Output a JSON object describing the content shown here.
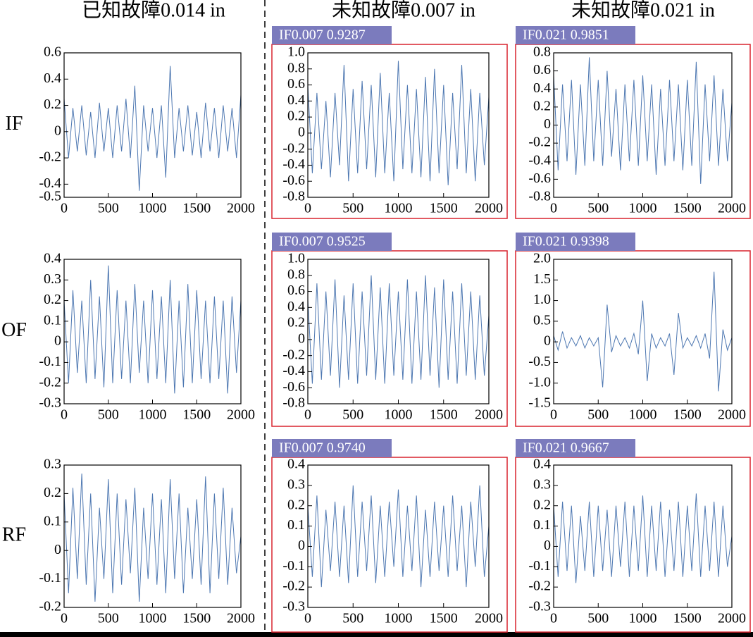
{
  "columns": [
    "已知故障0.014 in",
    "未知故障0.007 in",
    "未知故障0.021 in"
  ],
  "rows": [
    "IF",
    "OF",
    "RF"
  ],
  "chart_data": [
    {
      "type": "line",
      "color": "#2e5fa3",
      "xlim": [
        0,
        2000
      ],
      "xticks": [
        0,
        500,
        1000,
        1500,
        2000
      ],
      "ylim": [
        -0.5,
        0.6
      ],
      "yticks": [
        -0.5,
        -0.4,
        -0.2,
        0,
        0.2,
        0.4,
        0.6
      ],
      "x": [
        0,
        50,
        100,
        150,
        200,
        250,
        300,
        350,
        400,
        450,
        500,
        550,
        600,
        650,
        700,
        750,
        800,
        850,
        900,
        950,
        1000,
        1050,
        1100,
        1150,
        1200,
        1250,
        1300,
        1350,
        1400,
        1450,
        1500,
        1550,
        1600,
        1650,
        1700,
        1750,
        1800,
        1850,
        1900,
        1950,
        2000
      ],
      "values": [
        0.25,
        -0.2,
        0.18,
        -0.15,
        0.2,
        -0.18,
        0.15,
        -0.2,
        0.22,
        -0.15,
        0.18,
        -0.2,
        0.2,
        -0.15,
        0.25,
        -0.2,
        0.35,
        -0.45,
        0.2,
        -0.15,
        0.18,
        -0.2,
        0.2,
        -0.35,
        0.5,
        -0.2,
        0.18,
        -0.15,
        0.2,
        -0.18,
        0.15,
        -0.2,
        0.22,
        -0.15,
        0.18,
        -0.2,
        0.2,
        -0.15,
        0.18,
        -0.2,
        0.28
      ]
    },
    {
      "type": "line",
      "color": "#2e5fa3",
      "label": "IF0.007 0.9287",
      "xlim": [
        0,
        2000
      ],
      "xticks": [
        0,
        500,
        1000,
        1500,
        2000
      ],
      "ylim": [
        -0.8,
        1.0
      ],
      "yticks": [
        -0.8,
        -0.6,
        -0.4,
        -0.2,
        0,
        0.2,
        0.4,
        0.6,
        0.8,
        {
          "value": 1.0,
          "label": "1.0"
        }
      ],
      "x": [
        0,
        50,
        100,
        150,
        200,
        250,
        300,
        350,
        400,
        450,
        500,
        550,
        600,
        650,
        700,
        750,
        800,
        850,
        900,
        950,
        1000,
        1050,
        1100,
        1150,
        1200,
        1250,
        1300,
        1350,
        1400,
        1450,
        1500,
        1550,
        1600,
        1650,
        1700,
        1750,
        1800,
        1850,
        1900,
        1950,
        2000
      ],
      "values": [
        0.6,
        -0.5,
        0.5,
        -0.45,
        0.4,
        -0.55,
        0.5,
        -0.4,
        0.85,
        -0.6,
        0.55,
        -0.5,
        0.65,
        -0.45,
        0.6,
        -0.55,
        0.75,
        -0.5,
        0.5,
        -0.6,
        0.9,
        -0.45,
        0.6,
        -0.5,
        0.55,
        -0.55,
        0.7,
        -0.6,
        0.8,
        -0.5,
        0.6,
        -0.65,
        0.5,
        -0.45,
        0.85,
        -0.5,
        0.55,
        -0.6,
        0.5,
        -0.4,
        0.45
      ]
    },
    {
      "type": "line",
      "color": "#2e5fa3",
      "label": "IF0.021 0.9851",
      "xlim": [
        0,
        2000
      ],
      "xticks": [
        0,
        500,
        1000,
        1500,
        2000
      ],
      "ylim": [
        -0.8,
        0.8
      ],
      "yticks": [
        -0.8,
        -0.6,
        -0.4,
        -0.2,
        0,
        0.2,
        0.4,
        0.6,
        0.8
      ],
      "x": [
        0,
        50,
        100,
        150,
        200,
        250,
        300,
        350,
        400,
        450,
        500,
        550,
        600,
        650,
        700,
        750,
        800,
        850,
        900,
        950,
        1000,
        1050,
        1100,
        1150,
        1200,
        1250,
        1300,
        1350,
        1400,
        1450,
        1500,
        1550,
        1600,
        1650,
        1700,
        1750,
        1800,
        1850,
        1900,
        1950,
        2000
      ],
      "values": [
        0.55,
        -0.5,
        0.45,
        -0.4,
        0.5,
        -0.55,
        0.45,
        -0.45,
        0.75,
        -0.4,
        0.5,
        -0.45,
        0.6,
        -0.35,
        0.4,
        -0.5,
        0.45,
        -0.4,
        0.5,
        -0.45,
        0.55,
        -0.4,
        0.45,
        -0.55,
        0.4,
        -0.45,
        0.5,
        -0.4,
        0.45,
        -0.5,
        0.5,
        -0.45,
        0.7,
        -0.65,
        0.45,
        -0.4,
        0.55,
        -0.45,
        0.4,
        -0.4,
        0.25
      ]
    },
    {
      "type": "line",
      "color": "#2e5fa3",
      "xlim": [
        0,
        2000
      ],
      "xticks": [
        0,
        500,
        1000,
        1500,
        2000
      ],
      "ylim": [
        -0.3,
        0.4
      ],
      "yticks": [
        -0.3,
        -0.2,
        -0.1,
        0,
        0.1,
        0.2,
        0.3,
        0.4
      ],
      "x": [
        0,
        50,
        100,
        150,
        200,
        250,
        300,
        350,
        400,
        450,
        500,
        550,
        600,
        650,
        700,
        750,
        800,
        850,
        900,
        950,
        1000,
        1050,
        1100,
        1150,
        1200,
        1250,
        1300,
        1350,
        1400,
        1450,
        1500,
        1550,
        1600,
        1650,
        1700,
        1750,
        1800,
        1850,
        1900,
        1950,
        2000
      ],
      "values": [
        0.2,
        -0.2,
        0.25,
        -0.15,
        0.2,
        -0.2,
        0.3,
        -0.18,
        0.22,
        -0.22,
        0.37,
        -0.2,
        0.25,
        -0.18,
        0.2,
        -0.2,
        0.28,
        -0.15,
        0.2,
        -0.2,
        0.25,
        -0.18,
        0.22,
        -0.2,
        0.3,
        -0.25,
        0.2,
        -0.22,
        0.28,
        -0.2,
        0.25,
        -0.18,
        0.2,
        -0.2,
        0.22,
        -0.18,
        0.2,
        -0.25,
        0.22,
        -0.15,
        0.2
      ]
    },
    {
      "type": "line",
      "color": "#2e5fa3",
      "label": "IF0.007 0.9525",
      "xlim": [
        0,
        2000
      ],
      "xticks": [
        0,
        500,
        1000,
        1500,
        2000
      ],
      "ylim": [
        -0.8,
        1.0
      ],
      "yticks": [
        -0.8,
        -0.6,
        -0.4,
        -0.2,
        0,
        0.2,
        0.4,
        0.6,
        0.8,
        {
          "value": 1.0,
          "label": "1.0"
        }
      ],
      "x": [
        0,
        50,
        100,
        150,
        200,
        250,
        300,
        350,
        400,
        450,
        500,
        550,
        600,
        650,
        700,
        750,
        800,
        850,
        900,
        950,
        1000,
        1050,
        1100,
        1150,
        1200,
        1250,
        1300,
        1350,
        1400,
        1450,
        1500,
        1550,
        1600,
        1650,
        1700,
        1750,
        1800,
        1850,
        1900,
        1950,
        2000
      ],
      "values": [
        0.5,
        -0.55,
        0.7,
        -0.5,
        0.6,
        -0.45,
        0.75,
        -0.6,
        0.55,
        -0.5,
        0.7,
        -0.55,
        0.6,
        -0.45,
        0.8,
        -0.5,
        0.65,
        -0.55,
        0.7,
        -0.45,
        0.6,
        -0.5,
        0.75,
        -0.55,
        0.6,
        -0.5,
        0.8,
        -0.45,
        0.65,
        -0.6,
        0.75,
        -0.5,
        0.6,
        -0.55,
        0.7,
        -0.45,
        0.6,
        -0.5,
        0.55,
        -0.45,
        0.3
      ]
    },
    {
      "type": "line",
      "color": "#2e5fa3",
      "label": "IF0.021 0.9398",
      "xlim": [
        0,
        2000
      ],
      "xticks": [
        0,
        500,
        1000,
        1500,
        2000
      ],
      "ylim": [
        -1.5,
        2.0
      ],
      "yticks": [
        -1.5,
        {
          "value": -1.0,
          "label": "-1.0"
        },
        -0.5,
        0,
        0.5,
        {
          "value": 1.0,
          "label": "1.0"
        },
        1.5,
        {
          "value": 2.0,
          "label": "2.0"
        }
      ],
      "x": [
        0,
        50,
        100,
        150,
        200,
        250,
        300,
        350,
        400,
        450,
        500,
        550,
        600,
        650,
        700,
        750,
        800,
        850,
        900,
        950,
        1000,
        1050,
        1100,
        1150,
        1200,
        1250,
        1300,
        1350,
        1400,
        1450,
        1500,
        1550,
        1600,
        1650,
        1700,
        1750,
        1800,
        1850,
        1900,
        1950,
        2000
      ],
      "values": [
        0.15,
        -0.2,
        0.25,
        -0.15,
        0.1,
        -0.1,
        0.15,
        -0.15,
        0.1,
        -0.1,
        0.1,
        -1.1,
        0.9,
        -0.25,
        0.15,
        -0.1,
        0.1,
        -0.15,
        0.2,
        -0.3,
        1.0,
        -0.95,
        0.2,
        -0.15,
        0.1,
        -0.1,
        0.2,
        -0.8,
        0.7,
        -0.15,
        0.1,
        -0.1,
        0.15,
        -0.15,
        0.2,
        -0.4,
        1.7,
        -1.2,
        0.3,
        -0.2,
        0.1
      ]
    },
    {
      "type": "line",
      "color": "#2e5fa3",
      "xlim": [
        0,
        2000
      ],
      "xticks": [
        0,
        500,
        1000,
        1500,
        2000
      ],
      "ylim": [
        -0.2,
        0.3
      ],
      "yticks": [
        -0.2,
        -0.1,
        0,
        0.1,
        0.2,
        0.3
      ],
      "x": [
        0,
        50,
        100,
        150,
        200,
        250,
        300,
        350,
        400,
        450,
        500,
        550,
        600,
        650,
        700,
        750,
        800,
        850,
        900,
        950,
        1000,
        1050,
        1100,
        1150,
        1200,
        1250,
        1300,
        1350,
        1400,
        1450,
        1500,
        1550,
        1600,
        1650,
        1700,
        1750,
        1800,
        1850,
        1900,
        1950,
        2000
      ],
      "values": [
        0.2,
        -0.15,
        0.22,
        -0.1,
        0.27,
        -0.12,
        0.2,
        -0.18,
        0.15,
        -0.1,
        0.25,
        -0.15,
        0.2,
        -0.12,
        0.18,
        -0.08,
        0.22,
        -0.18,
        0.15,
        -0.1,
        0.2,
        -0.12,
        0.18,
        -0.15,
        0.25,
        -0.1,
        0.2,
        -0.15,
        0.15,
        -0.1,
        0.18,
        -0.12,
        0.26,
        -0.15,
        0.2,
        -0.1,
        0.22,
        -0.12,
        0.15,
        -0.08,
        0.05
      ]
    },
    {
      "type": "line",
      "color": "#2e5fa3",
      "label": "IF0.007 0.9740",
      "xlim": [
        0,
        2000
      ],
      "xticks": [
        0,
        500,
        1000,
        1500,
        2000
      ],
      "ylim": [
        -0.3,
        0.4
      ],
      "yticks": [
        -0.3,
        -0.2,
        -0.1,
        0,
        0.1,
        0.2,
        0.3,
        0.4
      ],
      "x": [
        0,
        50,
        100,
        150,
        200,
        250,
        300,
        350,
        400,
        450,
        500,
        550,
        600,
        650,
        700,
        750,
        800,
        850,
        900,
        950,
        1000,
        1050,
        1100,
        1150,
        1200,
        1250,
        1300,
        1350,
        1400,
        1450,
        1500,
        1550,
        1600,
        1650,
        1700,
        1750,
        1800,
        1850,
        1900,
        1950,
        2000
      ],
      "values": [
        0.2,
        -0.15,
        0.25,
        -0.2,
        0.18,
        -0.12,
        0.22,
        -0.15,
        0.2,
        -0.18,
        0.3,
        -0.15,
        0.22,
        -0.12,
        0.25,
        -0.18,
        0.2,
        -0.15,
        0.22,
        -0.1,
        0.28,
        -0.15,
        0.2,
        -0.12,
        0.25,
        -0.2,
        0.18,
        -0.15,
        0.22,
        -0.12,
        0.2,
        -0.15,
        0.25,
        -0.12,
        0.2,
        -0.2,
        0.22,
        -0.1,
        0.3,
        -0.15,
        0.1
      ]
    },
    {
      "type": "line",
      "color": "#2e5fa3",
      "label": "IF0.021 0.9667",
      "xlim": [
        0,
        2000
      ],
      "xticks": [
        0,
        500,
        1000,
        1500,
        2000
      ],
      "ylim": [
        -0.3,
        0.4
      ],
      "yticks": [
        -0.3,
        -0.2,
        -0.1,
        0,
        0.1,
        0.2,
        0.3,
        0.4
      ],
      "x": [
        0,
        50,
        100,
        150,
        200,
        250,
        300,
        350,
        400,
        450,
        500,
        550,
        600,
        650,
        700,
        750,
        800,
        850,
        900,
        950,
        1000,
        1050,
        1100,
        1150,
        1200,
        1250,
        1300,
        1350,
        1400,
        1450,
        1500,
        1550,
        1600,
        1650,
        1700,
        1750,
        1800,
        1850,
        1900,
        1950,
        2000
      ],
      "values": [
        0.2,
        -0.15,
        0.22,
        -0.12,
        0.2,
        -0.18,
        0.15,
        -0.12,
        0.22,
        -0.15,
        0.2,
        -0.12,
        0.18,
        -0.15,
        0.2,
        -0.1,
        0.22,
        -0.15,
        0.2,
        -0.12,
        0.25,
        -0.15,
        0.2,
        -0.12,
        0.22,
        -0.15,
        0.18,
        -0.12,
        0.22,
        -0.15,
        0.2,
        -0.12,
        0.26,
        -0.15,
        0.2,
        -0.12,
        0.22,
        -0.15,
        0.2,
        -0.1,
        0.05
      ]
    }
  ]
}
